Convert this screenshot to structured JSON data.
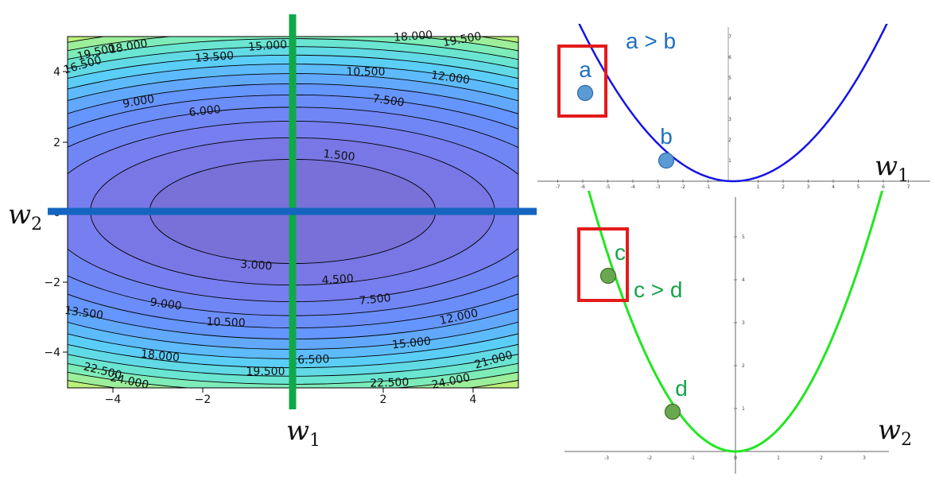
{
  "contour": {
    "x_ticks": [
      "−4",
      "−2",
      "2",
      "4"
    ],
    "y_ticks": [
      "4",
      "2",
      "0",
      "−2",
      "−4"
    ],
    "labels": [
      "19.500",
      "18.000",
      "16.500",
      "15.000",
      "13.500",
      "10.500",
      "12.000",
      "9.000",
      "6.000",
      "7.500",
      "1.500",
      "3.000",
      "4.500",
      "9.000",
      "7.500",
      "13.500",
      "10.500",
      "12.000",
      "15.000",
      "18.000",
      "16.500",
      "21.000",
      "22.500",
      "24.000",
      "19.500",
      "22.500",
      "24.000",
      "18.000",
      "19.500"
    ]
  },
  "axis_labels": {
    "w1_letter": "w",
    "w1_sub": "1",
    "w2_letter": "w",
    "w2_sub": "2"
  },
  "top_plot": {
    "relation": "a > b",
    "point_a": "a",
    "point_b": "b",
    "axis_letter": "w",
    "axis_sub": "1",
    "color": "#1f6fbf",
    "curve_color": "#1414e6",
    "point_color": "#5b9bd5",
    "x_ticks": [
      "-7",
      "-6",
      "-5",
      "-4",
      "-3",
      "-2",
      "-1",
      "0",
      "1",
      "2",
      "3",
      "4",
      "5",
      "6",
      "7"
    ],
    "y_ticks": [
      "7",
      "6",
      "5",
      "4",
      "3",
      "2",
      "1"
    ]
  },
  "bottom_plot": {
    "relation": "c > d",
    "point_c": "c",
    "point_d": "d",
    "axis_letter": "w",
    "axis_sub": "2",
    "color": "#17a34a",
    "curve_color": "#22e622",
    "point_color": "#6aa84f",
    "x_ticks": [
      "-3",
      "-2",
      "-1",
      "0",
      "1",
      "2",
      "3"
    ],
    "y_ticks": [
      "5",
      "4",
      "3",
      "2",
      "1"
    ]
  },
  "colors": {
    "vertical_line": "#10a84a",
    "horizontal_line": "#1565c0",
    "highlight_box": "#e31b1b"
  }
}
